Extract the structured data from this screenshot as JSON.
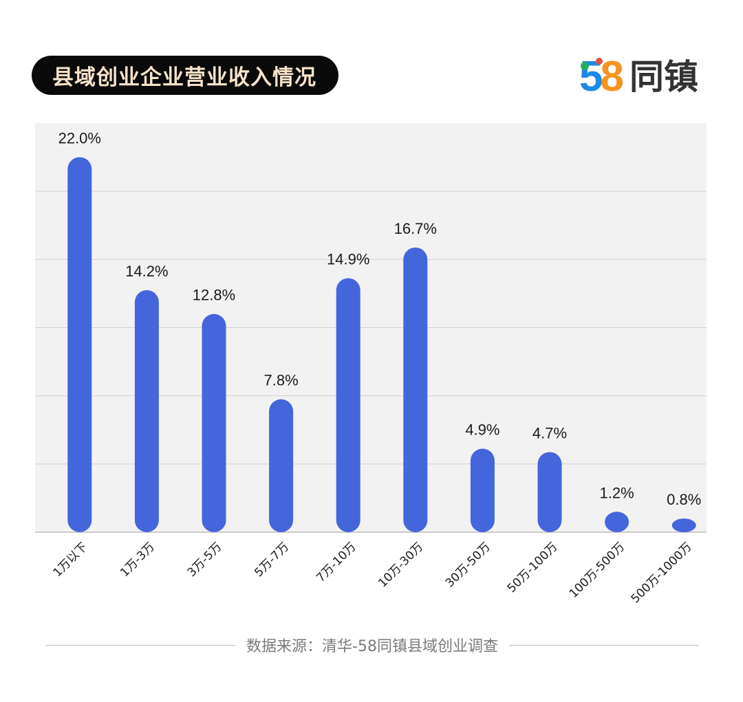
{
  "title": "县域创业企业营业收入情况",
  "logo": {
    "digits_5": "5",
    "digits_8": "8",
    "text": "同镇"
  },
  "source": "数据来源：清华-58同镇县域创业调查",
  "colors": {
    "bar": "#4466dd",
    "plot_bg": "#f2f2f2",
    "grid": "#cfcfcf",
    "title_bg": "#0a0a0a",
    "title_text": "#f7e3c9"
  },
  "chart_data": {
    "type": "bar",
    "categories": [
      "1万以下",
      "1万-3万",
      "3万-5万",
      "5万-7万",
      "7万-10万",
      "10万-30万",
      "30万-50万",
      "50万-100万",
      "100万-500万",
      "500万-1000万"
    ],
    "values": [
      22.0,
      14.2,
      12.8,
      7.8,
      14.9,
      16.7,
      4.9,
      4.7,
      1.2,
      0.8
    ],
    "value_labels": [
      "22.0%",
      "14.2%",
      "12.8%",
      "7.8%",
      "14.9%",
      "16.7%",
      "4.9%",
      "4.7%",
      "1.2%",
      "0.8%"
    ],
    "ylim": [
      0,
      24
    ],
    "grid": true,
    "title": "县域创业企业营业收入情况",
    "xlabel": "",
    "ylabel": ""
  }
}
